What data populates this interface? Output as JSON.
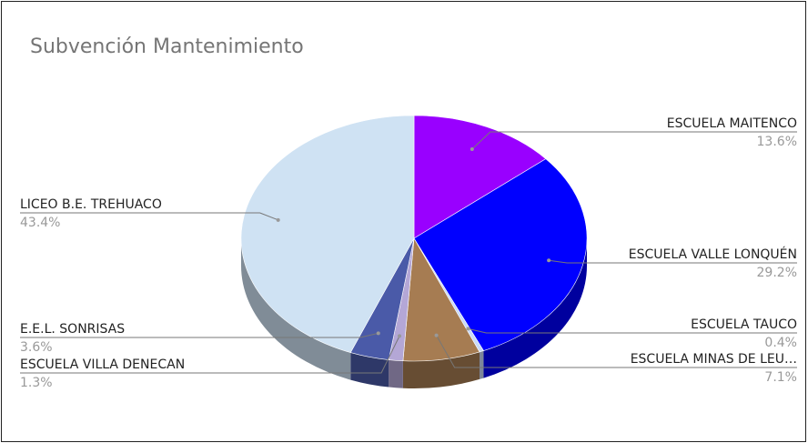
{
  "chart_data": {
    "type": "pie",
    "title": "Subvención Mantenimiento",
    "categories": [
      "ESCUELA MAITENCO",
      "ESCUELA VALLE LONQUÉN",
      "ESCUELA TAUCO",
      "ESCUELA MINAS DE LEU…",
      "ESCUELA VILLA DENECAN",
      "E.E.L. SONRISAS",
      "LICEO B.E. TREHUACO"
    ],
    "values": [
      13.6,
      29.2,
      0.4,
      7.1,
      1.3,
      3.6,
      43.4
    ],
    "value_labels": [
      "13.6%",
      "29.2%",
      "0.4%",
      "7.1%",
      "1.3%",
      "3.6%",
      "43.4%"
    ],
    "colors": [
      "#9900ff",
      "#0000ff",
      "#c9daf8",
      "#a67c52",
      "#b4a7d6",
      "#4a5aa8",
      "#cfe2f3"
    ],
    "is3D": true
  }
}
